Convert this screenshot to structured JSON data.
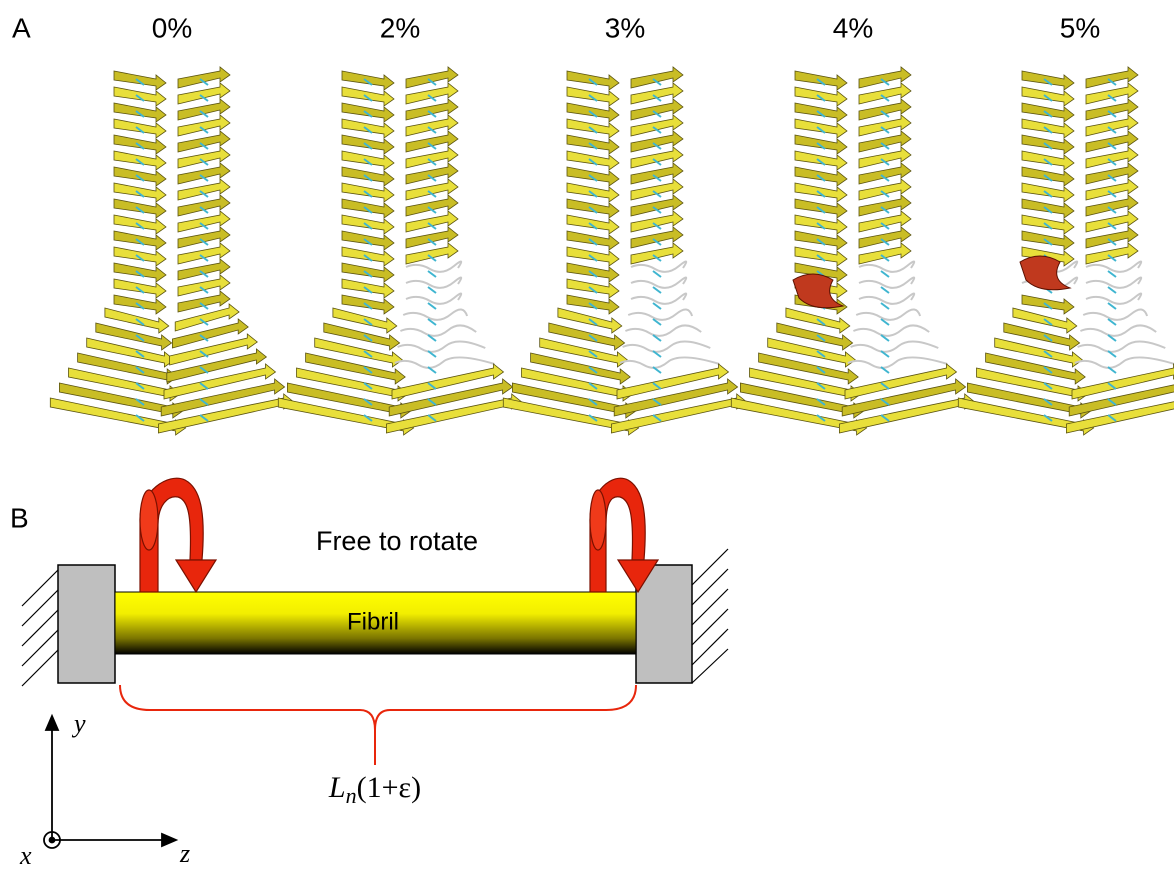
{
  "panel_a": {
    "label": "A",
    "strains": [
      "0%",
      "2%",
      "3%",
      "4%",
      "5%"
    ]
  },
  "panel_b": {
    "label": "B",
    "rotation_note": "Free to rotate",
    "rod_label": "Fibril",
    "length_label": {
      "base": "L",
      "subscript": "n",
      "rest": "(1+ε)"
    },
    "axes": {
      "x": "x",
      "y": "y",
      "z": "z"
    }
  }
}
